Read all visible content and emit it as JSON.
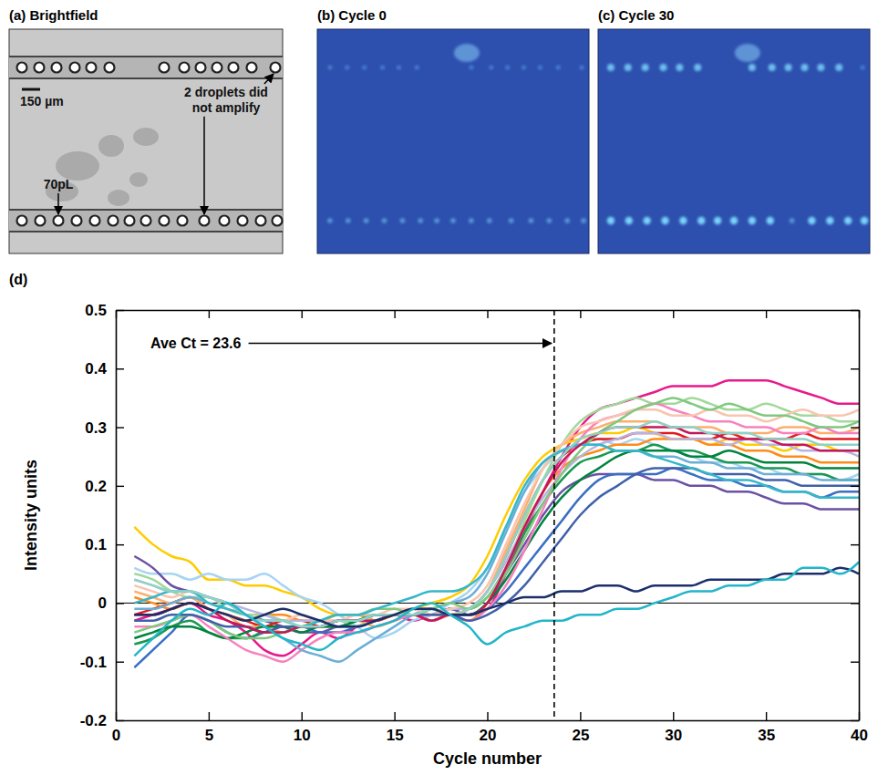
{
  "image_panels": [
    {
      "label": "(a) Brightfield",
      "scale_bar": "150 µm",
      "annotations": [
        "70pL",
        "2 droplets did not amplify"
      ]
    },
    {
      "label": "(b) Cycle 0"
    },
    {
      "label": "(c) Cycle 30"
    }
  ],
  "chart_data": {
    "type": "line",
    "title": "(d)",
    "x_label": "Cycle number",
    "y_label": "Intensity units",
    "x": [
      1,
      2,
      3,
      4,
      5,
      6,
      7,
      8,
      9,
      10,
      11,
      12,
      13,
      14,
      15,
      16,
      17,
      18,
      19,
      20,
      21,
      22,
      23,
      24,
      25,
      26,
      27,
      28,
      29,
      30,
      31,
      32,
      33,
      34,
      35,
      36,
      37,
      38,
      39,
      40
    ],
    "xlim": [
      0,
      40
    ],
    "xticks": [
      0,
      5,
      10,
      15,
      20,
      25,
      30,
      35,
      40
    ],
    "ylim": [
      -0.2,
      0.5
    ],
    "yticks": [
      -0.2,
      -0.1,
      0,
      0.1,
      0.2,
      0.3,
      0.4,
      0.5
    ],
    "annotations": [
      {
        "text": "Ave Ct = 23.6",
        "x": 23.6
      },
      {
        "y": 0
      }
    ],
    "series": [
      {
        "color": "#e8198b",
        "values": [
          -0.03,
          -0.02,
          -0.01,
          0,
          -0.02,
          -0.03,
          -0.05,
          -0.08,
          -0.09,
          -0.07,
          -0.05,
          -0.06,
          -0.04,
          -0.03,
          -0.02,
          -0.03,
          -0.02,
          -0.01,
          -0.02,
          -0.01,
          0.05,
          0.12,
          0.19,
          0.25,
          0.3,
          0.33,
          0.34,
          0.35,
          0.36,
          0.37,
          0.37,
          0.37,
          0.38,
          0.38,
          0.38,
          0.37,
          0.36,
          0.35,
          0.34,
          0.34
        ]
      },
      {
        "color": "#ffcc00",
        "values": [
          0.13,
          0.1,
          0.08,
          0.07,
          0.04,
          0.04,
          0.03,
          0.03,
          0.02,
          0.01,
          -0.01,
          -0.02,
          -0.02,
          -0.03,
          -0.02,
          -0.01,
          0,
          0.01,
          0.03,
          0.08,
          0.15,
          0.21,
          0.25,
          0.27,
          0.28,
          0.29,
          0.29,
          0.3,
          0.29,
          0.28,
          0.28,
          0.27,
          0.28,
          0.27,
          0.27,
          0.26,
          0.27,
          0.27,
          0.26,
          0.26
        ]
      },
      {
        "color": "#a6d4f2",
        "values": [
          0.06,
          0.05,
          0.05,
          0.04,
          0.05,
          0.04,
          0.04,
          0.05,
          0.03,
          0.01,
          0,
          -0.02,
          -0.04,
          -0.06,
          -0.05,
          -0.03,
          -0.02,
          0,
          0.02,
          0.06,
          0.13,
          0.19,
          0.23,
          0.26,
          0.27,
          0.28,
          0.27,
          0.28,
          0.27,
          0.26,
          0.25,
          0.24,
          0.24,
          0.23,
          0.23,
          0.22,
          0.22,
          0.22,
          0.21,
          0.22
        ]
      },
      {
        "color": "#6a51a3",
        "values": [
          0.08,
          0.06,
          0.03,
          0.02,
          0.01,
          0,
          -0.02,
          -0.03,
          -0.04,
          -0.05,
          -0.05,
          -0.04,
          -0.04,
          -0.03,
          -0.02,
          -0.02,
          -0.03,
          -0.02,
          -0.02,
          0,
          0.05,
          0.1,
          0.15,
          0.19,
          0.21,
          0.22,
          0.22,
          0.22,
          0.21,
          0.21,
          0.2,
          0.2,
          0.19,
          0.19,
          0.18,
          0.17,
          0.17,
          0.16,
          0.16,
          0.16
        ]
      },
      {
        "color": "#3a6fc4",
        "values": [
          -0.11,
          -0.08,
          -0.05,
          -0.02,
          -0.03,
          -0.05,
          -0.06,
          -0.05,
          -0.04,
          -0.04,
          -0.05,
          -0.05,
          -0.04,
          -0.03,
          -0.02,
          -0.02,
          -0.02,
          -0.01,
          -0.02,
          -0.01,
          0.02,
          0.06,
          0.1,
          0.14,
          0.18,
          0.21,
          0.22,
          0.22,
          0.22,
          0.23,
          0.22,
          0.21,
          0.21,
          0.2,
          0.2,
          0.19,
          0.19,
          0.18,
          0.19,
          0.19
        ]
      },
      {
        "color": "#1a9850",
        "values": [
          -0.07,
          -0.06,
          -0.04,
          -0.03,
          -0.05,
          -0.06,
          -0.06,
          -0.05,
          -0.05,
          -0.04,
          -0.04,
          -0.04,
          -0.03,
          -0.03,
          -0.02,
          -0.02,
          -0.02,
          -0.01,
          -0.01,
          0.01,
          0.06,
          0.12,
          0.17,
          0.21,
          0.24,
          0.25,
          0.26,
          0.26,
          0.27,
          0.26,
          0.26,
          0.25,
          0.24,
          0.24,
          0.23,
          0.23,
          0.22,
          0.22,
          0.21,
          0.21
        ]
      },
      {
        "color": "#e31a1c",
        "values": [
          -0.02,
          -0.01,
          0,
          0.01,
          -0.01,
          -0.02,
          -0.03,
          -0.04,
          -0.03,
          -0.03,
          -0.04,
          -0.03,
          -0.03,
          -0.02,
          -0.02,
          -0.01,
          -0.02,
          -0.02,
          -0.01,
          0.02,
          0.08,
          0.15,
          0.21,
          0.25,
          0.27,
          0.28,
          0.28,
          0.29,
          0.29,
          0.29,
          0.28,
          0.28,
          0.29,
          0.28,
          0.28,
          0.28,
          0.29,
          0.28,
          0.28,
          0.28
        ]
      },
      {
        "color": "#ff8c1a",
        "values": [
          0.01,
          0,
          -0.01,
          0,
          -0.01,
          -0.02,
          -0.03,
          -0.02,
          -0.02,
          -0.03,
          -0.03,
          -0.02,
          -0.02,
          -0.03,
          -0.02,
          -0.01,
          -0.01,
          -0.02,
          -0.03,
          0,
          0.06,
          0.13,
          0.19,
          0.23,
          0.25,
          0.26,
          0.27,
          0.27,
          0.28,
          0.28,
          0.28,
          0.27,
          0.27,
          0.26,
          0.26,
          0.25,
          0.25,
          0.24,
          0.24,
          0.24
        ]
      },
      {
        "color": "#a1d99b",
        "values": [
          0.05,
          0.04,
          0.02,
          0.01,
          0.01,
          -0.01,
          -0.02,
          -0.02,
          -0.03,
          -0.04,
          -0.03,
          -0.03,
          -0.04,
          -0.02,
          -0.02,
          -0.01,
          -0.02,
          -0.02,
          -0.01,
          0.01,
          0.06,
          0.14,
          0.21,
          0.27,
          0.31,
          0.33,
          0.34,
          0.35,
          0.34,
          0.34,
          0.35,
          0.34,
          0.33,
          0.33,
          0.34,
          0.33,
          0.32,
          0.32,
          0.31,
          0.31
        ]
      },
      {
        "color": "#fdae6b",
        "values": [
          0.02,
          0.01,
          0,
          0.01,
          -0.01,
          -0.02,
          -0.04,
          -0.04,
          -0.05,
          -0.04,
          -0.04,
          -0.03,
          -0.03,
          -0.04,
          -0.03,
          -0.02,
          -0.03,
          -0.02,
          -0.01,
          0.02,
          0.09,
          0.16,
          0.23,
          0.27,
          0.29,
          0.3,
          0.31,
          0.31,
          0.31,
          0.3,
          0.3,
          0.3,
          0.29,
          0.29,
          0.29,
          0.3,
          0.3,
          0.29,
          0.29,
          0.3
        ]
      },
      {
        "color": "#00843d",
        "values": [
          -0.06,
          -0.05,
          -0.04,
          -0.04,
          -0.05,
          -0.06,
          -0.05,
          -0.04,
          -0.04,
          -0.05,
          -0.04,
          -0.04,
          -0.03,
          -0.02,
          -0.02,
          -0.02,
          -0.01,
          -0.02,
          -0.02,
          0,
          0.04,
          0.09,
          0.14,
          0.18,
          0.21,
          0.23,
          0.25,
          0.26,
          0.26,
          0.26,
          0.25,
          0.25,
          0.26,
          0.25,
          0.24,
          0.24,
          0.24,
          0.23,
          0.23,
          0.23
        ]
      },
      {
        "color": "#b8b4e0",
        "values": [
          0.04,
          0.03,
          0.02,
          0.02,
          0.01,
          0,
          -0.01,
          -0.02,
          -0.03,
          -0.03,
          -0.03,
          -0.04,
          -0.04,
          -0.03,
          -0.02,
          -0.02,
          -0.02,
          -0.01,
          -0.01,
          0.02,
          0.07,
          0.13,
          0.18,
          0.22,
          0.25,
          0.27,
          0.28,
          0.29,
          0.29,
          0.28,
          0.28,
          0.28,
          0.27,
          0.28,
          0.27,
          0.27,
          0.26,
          0.26,
          0.26,
          0.25
        ]
      },
      {
        "color": "#f781bf",
        "values": [
          -0.04,
          -0.04,
          -0.03,
          -0.02,
          -0.04,
          -0.06,
          -0.08,
          -0.09,
          -0.1,
          -0.08,
          -0.06,
          -0.05,
          -0.05,
          -0.04,
          -0.03,
          -0.02,
          -0.03,
          -0.02,
          -0.03,
          -0.01,
          0.03,
          0.09,
          0.16,
          0.23,
          0.28,
          0.31,
          0.32,
          0.33,
          0.34,
          0.33,
          0.32,
          0.31,
          0.31,
          0.3,
          0.3,
          0.29,
          0.29,
          0.3,
          0.29,
          0.29
        ]
      },
      {
        "color": "#6baed6",
        "values": [
          -0.01,
          -0.01,
          0,
          0.01,
          0,
          -0.01,
          -0.02,
          -0.04,
          -0.06,
          -0.08,
          -0.09,
          -0.1,
          -0.08,
          -0.06,
          -0.04,
          -0.02,
          -0.01,
          0,
          0.01,
          0.05,
          0.12,
          0.19,
          0.24,
          0.26,
          0.27,
          0.27,
          0.26,
          0.26,
          0.25,
          0.25,
          0.24,
          0.24,
          0.23,
          0.23,
          0.22,
          0.22,
          0.22,
          0.21,
          0.21,
          0.21
        ]
      },
      {
        "color": "#f9c4b0",
        "values": [
          0.03,
          0.02,
          0.01,
          0.02,
          0,
          -0.01,
          -0.02,
          -0.03,
          -0.03,
          -0.02,
          -0.03,
          -0.03,
          -0.02,
          -0.02,
          -0.01,
          -0.01,
          -0.02,
          -0.01,
          0,
          0.03,
          0.1,
          0.17,
          0.23,
          0.27,
          0.3,
          0.31,
          0.32,
          0.33,
          0.33,
          0.32,
          0.32,
          0.33,
          0.32,
          0.32,
          0.31,
          0.32,
          0.33,
          0.32,
          0.32,
          0.33
        ]
      },
      {
        "color": "#7fc97f",
        "values": [
          -0.05,
          -0.04,
          -0.03,
          -0.02,
          -0.03,
          -0.05,
          -0.06,
          -0.06,
          -0.05,
          -0.04,
          -0.03,
          -0.02,
          -0.02,
          -0.01,
          -0.01,
          -0.02,
          -0.01,
          0,
          -0.01,
          0.01,
          0.05,
          0.11,
          0.17,
          0.22,
          0.26,
          0.29,
          0.31,
          0.33,
          0.34,
          0.35,
          0.34,
          0.33,
          0.34,
          0.33,
          0.32,
          0.32,
          0.31,
          0.3,
          0.3,
          0.31
        ]
      },
      {
        "color": "#4060a8",
        "values": [
          -0.03,
          -0.03,
          -0.02,
          -0.02,
          -0.03,
          -0.04,
          -0.04,
          -0.05,
          -0.04,
          -0.04,
          -0.04,
          -0.03,
          -0.03,
          -0.02,
          -0.02,
          -0.02,
          -0.02,
          -0.02,
          -0.03,
          -0.02,
          0,
          0.03,
          0.07,
          0.11,
          0.15,
          0.18,
          0.2,
          0.22,
          0.23,
          0.23,
          0.23,
          0.22,
          0.22,
          0.22,
          0.21,
          0.21,
          0.2,
          0.2,
          0.2,
          0.2
        ]
      },
      {
        "color": "#35b7c9",
        "values": [
          0,
          0.01,
          0.02,
          0.02,
          0,
          -0.01,
          -0.02,
          -0.03,
          -0.03,
          -0.04,
          -0.03,
          -0.02,
          -0.02,
          -0.01,
          0,
          0.01,
          0.02,
          0.02,
          0.03,
          0.06,
          0.13,
          0.2,
          0.24,
          0.26,
          0.27,
          0.27,
          0.26,
          0.26,
          0.25,
          0.24,
          0.23,
          0.22,
          0.21,
          0.21,
          0.2,
          0.19,
          0.19,
          0.18,
          0.18,
          0.18
        ]
      },
      {
        "color": "#c2185b",
        "values": [
          -0.02,
          -0.02,
          -0.01,
          0,
          -0.01,
          -0.03,
          -0.04,
          -0.05,
          -0.05,
          -0.04,
          -0.04,
          -0.03,
          -0.03,
          -0.03,
          -0.02,
          -0.02,
          -0.03,
          -0.02,
          -0.02,
          0,
          0.06,
          0.13,
          0.19,
          0.24,
          0.27,
          0.29,
          0.3,
          0.3,
          0.3,
          0.3,
          0.29,
          0.29,
          0.28,
          0.28,
          0.28,
          0.27,
          0.27,
          0.26,
          0.26,
          0.26
        ]
      },
      {
        "color": "#8dd3c7",
        "values": [
          0.04,
          0.03,
          0.02,
          0.02,
          0.01,
          0,
          -0.02,
          -0.03,
          -0.03,
          -0.04,
          -0.04,
          -0.03,
          -0.03,
          -0.02,
          -0.02,
          -0.02,
          -0.01,
          -0.02,
          -0.01,
          0.02,
          0.08,
          0.15,
          0.21,
          0.25,
          0.28,
          0.29,
          0.3,
          0.3,
          0.31,
          0.3,
          0.3,
          0.29,
          0.29,
          0.29,
          0.28,
          0.28,
          0.28,
          0.27,
          0.27,
          0.27
        ]
      },
      {
        "color": "#1b2f6b",
        "values": [
          -0.02,
          -0.02,
          -0.01,
          0,
          -0.01,
          -0.02,
          -0.03,
          -0.02,
          -0.01,
          -0.02,
          -0.03,
          -0.04,
          -0.04,
          -0.03,
          -0.02,
          -0.01,
          -0.01,
          -0.02,
          -0.02,
          -0.01,
          0,
          0.01,
          0.01,
          0.02,
          0.02,
          0.03,
          0.03,
          0.02,
          0.03,
          0.03,
          0.03,
          0.04,
          0.04,
          0.04,
          0.04,
          0.05,
          0.05,
          0.05,
          0.06,
          0.05
        ]
      },
      {
        "color": "#23b5c8",
        "values": [
          -0.09,
          -0.06,
          -0.03,
          -0.01,
          -0.02,
          0,
          -0.02,
          -0.04,
          -0.06,
          -0.07,
          -0.08,
          -0.06,
          -0.05,
          -0.04,
          -0.03,
          -0.01,
          0,
          -0.02,
          -0.04,
          -0.07,
          -0.05,
          -0.04,
          -0.03,
          -0.03,
          -0.02,
          -0.02,
          -0.01,
          -0.01,
          0,
          0.01,
          0.02,
          0.02,
          0.03,
          0.03,
          0.04,
          0.04,
          0.06,
          0.06,
          0.05,
          0.07
        ]
      }
    ]
  }
}
